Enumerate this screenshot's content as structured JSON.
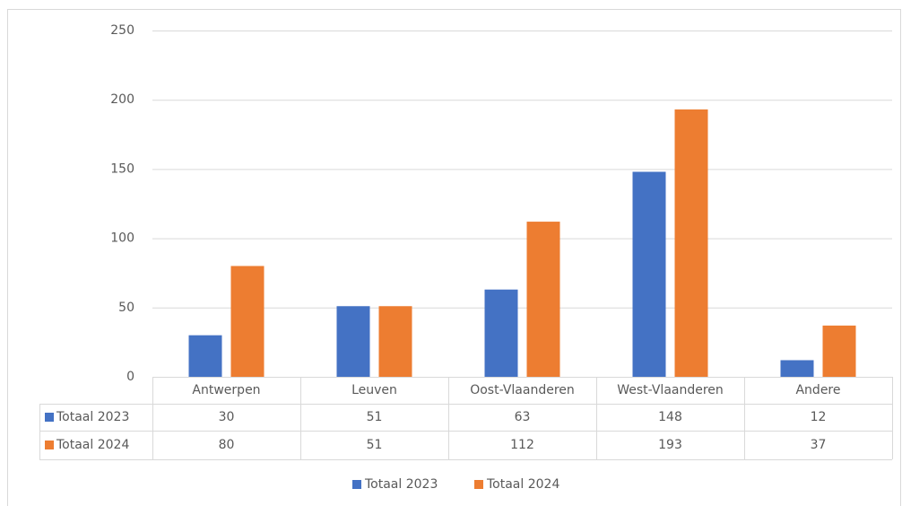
{
  "chart_data": {
    "type": "bar",
    "categories": [
      "Antwerpen",
      "Leuven",
      "Oost-Vlaanderen",
      "West-Vlaanderen",
      "Andere"
    ],
    "series": [
      {
        "name": "Totaal 2023",
        "color": "#4472c4",
        "values": [
          30,
          51,
          63,
          148,
          12
        ]
      },
      {
        "name": "Totaal 2024",
        "color": "#ed7d31",
        "values": [
          80,
          51,
          112,
          193,
          37
        ]
      }
    ],
    "ylim": [
      0,
      250
    ],
    "yticks": [
      0,
      50,
      100,
      150,
      200,
      250
    ],
    "grid": true,
    "legend": "bottom",
    "data_table": true
  }
}
